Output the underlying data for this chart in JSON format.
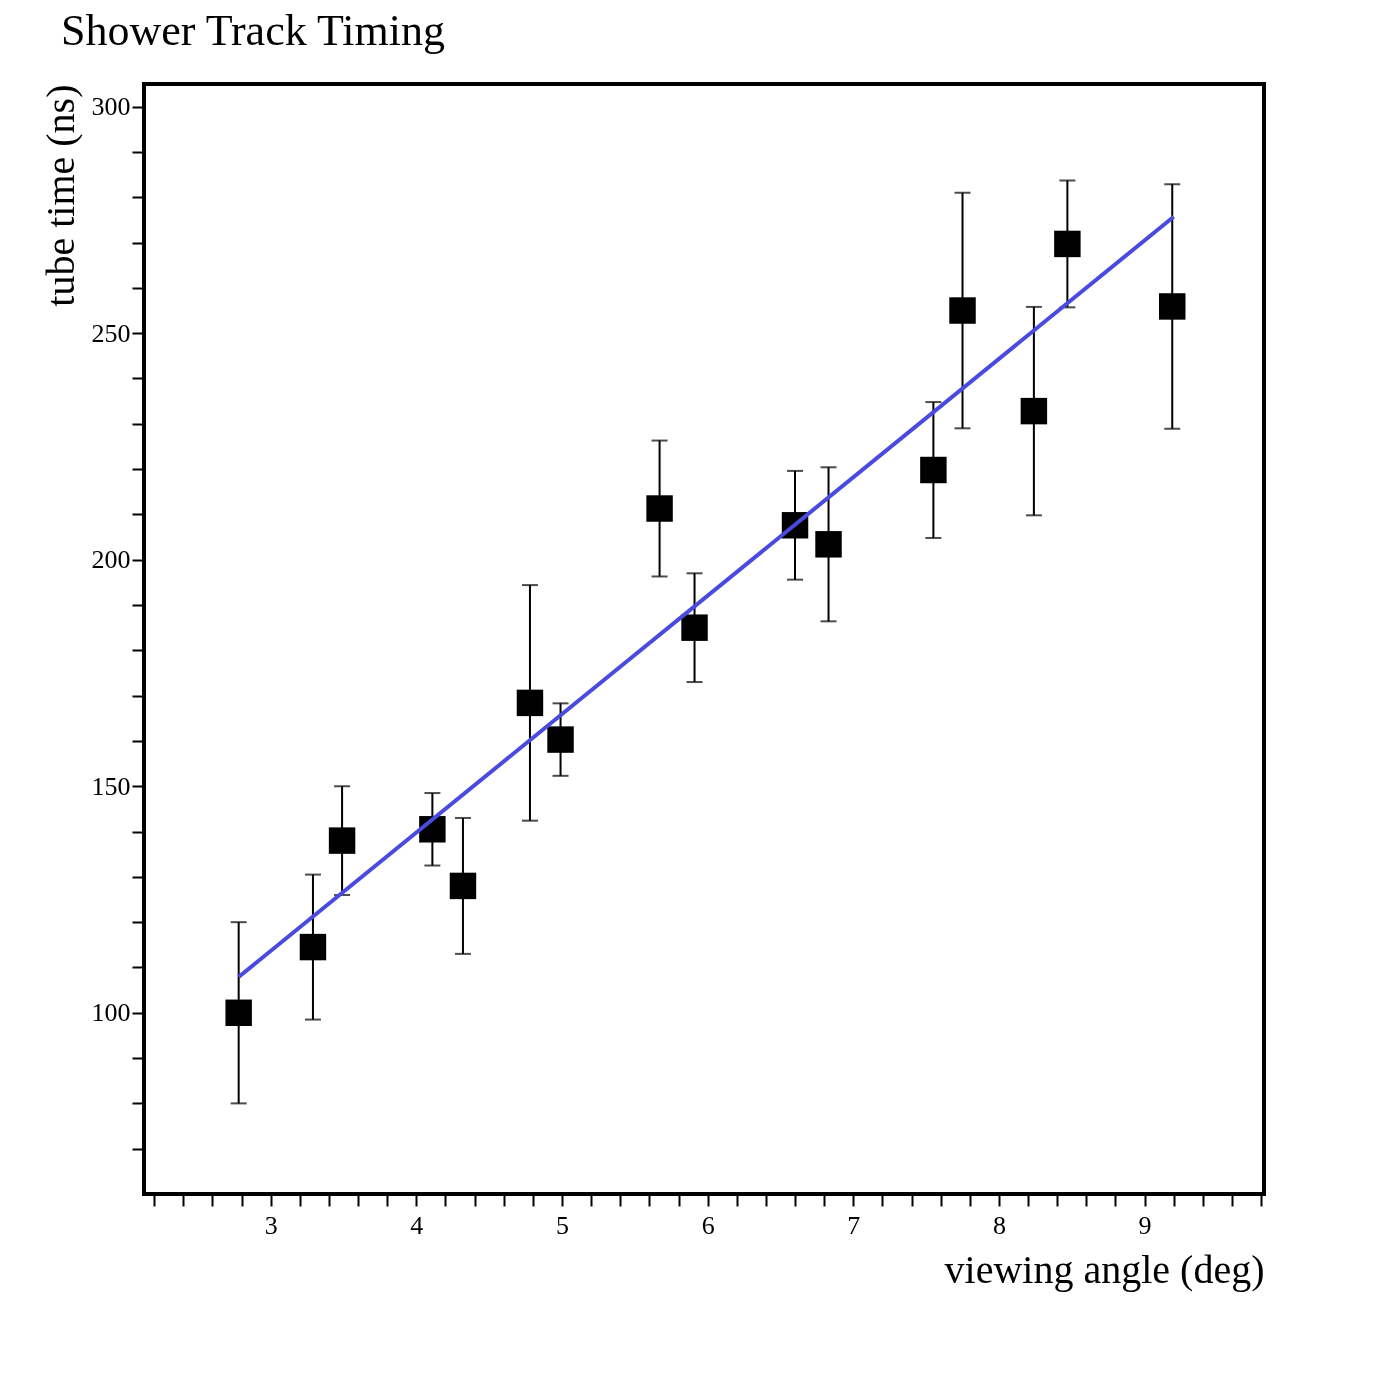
{
  "chart_data": {
    "type": "scatter",
    "title": "Shower Track Timing",
    "xlabel": "viewing angle (deg)",
    "ylabel": "tube time (ns)",
    "xlim": [
      2.13,
      9.82
    ],
    "ylim": [
      60,
      305
    ],
    "xticks": [
      {
        "value": 2.2,
        "label": null
      },
      {
        "value": 2.4,
        "label": null
      },
      {
        "value": 2.6,
        "label": null
      },
      {
        "value": 2.8,
        "label": null
      },
      3,
      {
        "value": 3.2,
        "label": null
      },
      {
        "value": 3.4,
        "label": null
      },
      {
        "value": 3.6,
        "label": null
      },
      {
        "value": 3.8,
        "label": null
      },
      4,
      {
        "value": 4.2,
        "label": null
      },
      {
        "value": 4.4,
        "label": null
      },
      {
        "value": 4.6,
        "label": null
      },
      {
        "value": 4.8,
        "label": null
      },
      5,
      {
        "value": 5.2,
        "label": null
      },
      {
        "value": 5.4,
        "label": null
      },
      {
        "value": 5.6,
        "label": null
      },
      {
        "value": 5.8,
        "label": null
      },
      6,
      {
        "value": 6.2,
        "label": null
      },
      {
        "value": 6.4,
        "label": null
      },
      {
        "value": 6.6,
        "label": null
      },
      {
        "value": 6.8,
        "label": null
      },
      7,
      {
        "value": 7.2,
        "label": null
      },
      {
        "value": 7.4,
        "label": null
      },
      {
        "value": 7.6,
        "label": null
      },
      {
        "value": 7.8,
        "label": null
      },
      8,
      {
        "value": 8.2,
        "label": null
      },
      {
        "value": 8.4,
        "label": null
      },
      {
        "value": 8.6,
        "label": null
      },
      {
        "value": 8.8,
        "label": null
      },
      9,
      {
        "value": 9.2,
        "label": null
      },
      {
        "value": 9.4,
        "label": null
      },
      {
        "value": 9.6,
        "label": null
      },
      {
        "value": 9.8,
        "label": null
      }
    ],
    "yticks": [
      {
        "value": 70,
        "label": null
      },
      {
        "value": 80,
        "label": null
      },
      {
        "value": 90,
        "label": null
      },
      100,
      {
        "value": 110,
        "label": null
      },
      {
        "value": 120,
        "label": null
      },
      {
        "value": 130,
        "label": null
      },
      {
        "value": 140,
        "label": null
      },
      150,
      {
        "value": 160,
        "label": null
      },
      {
        "value": 170,
        "label": null
      },
      {
        "value": 180,
        "label": null
      },
      {
        "value": 190,
        "label": null
      },
      200,
      {
        "value": 210,
        "label": null
      },
      {
        "value": 220,
        "label": null
      },
      {
        "value": 230,
        "label": null
      },
      {
        "value": 240,
        "label": null
      },
      250,
      {
        "value": 260,
        "label": null
      },
      {
        "value": 270,
        "label": null
      },
      {
        "value": 280,
        "label": null
      },
      {
        "value": 290,
        "label": null
      },
      300
    ],
    "grid": false,
    "series": [
      {
        "type": "scatter",
        "color": "#000000",
        "marker": "square",
        "x": [
          2.78,
          3.29,
          3.49,
          4.11,
          4.32,
          4.78,
          4.99,
          5.67,
          5.91,
          6.6,
          6.83,
          7.55,
          7.75,
          8.24,
          8.47,
          9.19
        ],
        "values": [
          100,
          114.5,
          138,
          140.5,
          128,
          168.4,
          160.3,
          211.3,
          185,
          207.6,
          203.4,
          219.8,
          255,
          232.8,
          269.7,
          255.9
        ],
        "errors": [
          20,
          16,
          12,
          8,
          15,
          26,
          8,
          15,
          12,
          12,
          17,
          15,
          26,
          23,
          14,
          27
        ]
      },
      {
        "type": "line",
        "color": "#4a4ade",
        "line_style": "solid",
        "marker": "none",
        "x": [
          2.78,
          9.2
        ],
        "values": [
          107.9,
          275.7
        ]
      }
    ]
  }
}
